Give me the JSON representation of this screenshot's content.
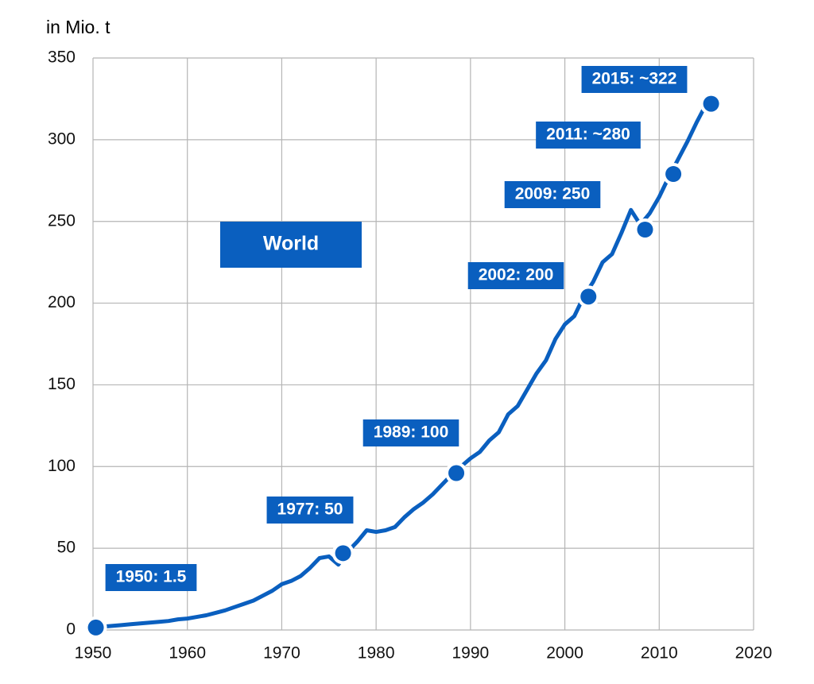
{
  "chart_data": {
    "type": "line",
    "y_label": "in Mio. t",
    "note": "World",
    "x": [
      1950,
      1951,
      1952,
      1953,
      1954,
      1955,
      1956,
      1957,
      1958,
      1959,
      1960,
      1961,
      1962,
      1963,
      1964,
      1965,
      1966,
      1967,
      1968,
      1969,
      1970,
      1971,
      1972,
      1973,
      1974,
      1975,
      1976,
      1977,
      1978,
      1979,
      1980,
      1981,
      1982,
      1983,
      1984,
      1985,
      1986,
      1987,
      1988,
      1989,
      1990,
      1991,
      1992,
      1993,
      1994,
      1995,
      1996,
      1997,
      1998,
      1999,
      2000,
      2001,
      2002,
      2003,
      2004,
      2005,
      2006,
      2007,
      2008,
      2009,
      2010,
      2011,
      2012,
      2013,
      2014,
      2015
    ],
    "series": [
      {
        "name": "World",
        "color": "#0a5fbf",
        "values": [
          1.5,
          2,
          2.5,
          3,
          3.5,
          4,
          4.5,
          5,
          5.5,
          6.5,
          7,
          8,
          9,
          10.5,
          12,
          14,
          16,
          18,
          21,
          24,
          28,
          30,
          33,
          38,
          44,
          45,
          40,
          48,
          54,
          61,
          60,
          61,
          63,
          69,
          74,
          78,
          83,
          89,
          95,
          100,
          105,
          109,
          116,
          121,
          132,
          137,
          147,
          157,
          165,
          178,
          187,
          192,
          204,
          213,
          225,
          230,
          243,
          257,
          248,
          255,
          265,
          277,
          288,
          299,
          311,
          322
        ]
      }
    ],
    "markers": {
      "color": "#0a5fbf",
      "x": [
        1950.3,
        1976.5,
        1988.5,
        2002.5,
        2008.5,
        2011.5,
        2015.5
      ],
      "values": [
        1.5,
        47,
        96,
        204,
        245,
        279,
        322
      ],
      "labels": [
        "1950: 1.5",
        "1977: 50",
        "1989: 100",
        "2002: 200",
        "2009: 250",
        "2011: ~280",
        "2015: ~322"
      ]
    },
    "xlim": [
      1950,
      2020
    ],
    "xticks": [
      1950,
      1960,
      1970,
      1980,
      1990,
      2000,
      2010,
      2020
    ],
    "ylim": [
      0,
      350
    ],
    "yticks": [
      0,
      50,
      100,
      150,
      200,
      250,
      300,
      350
    ],
    "grid": true
  }
}
